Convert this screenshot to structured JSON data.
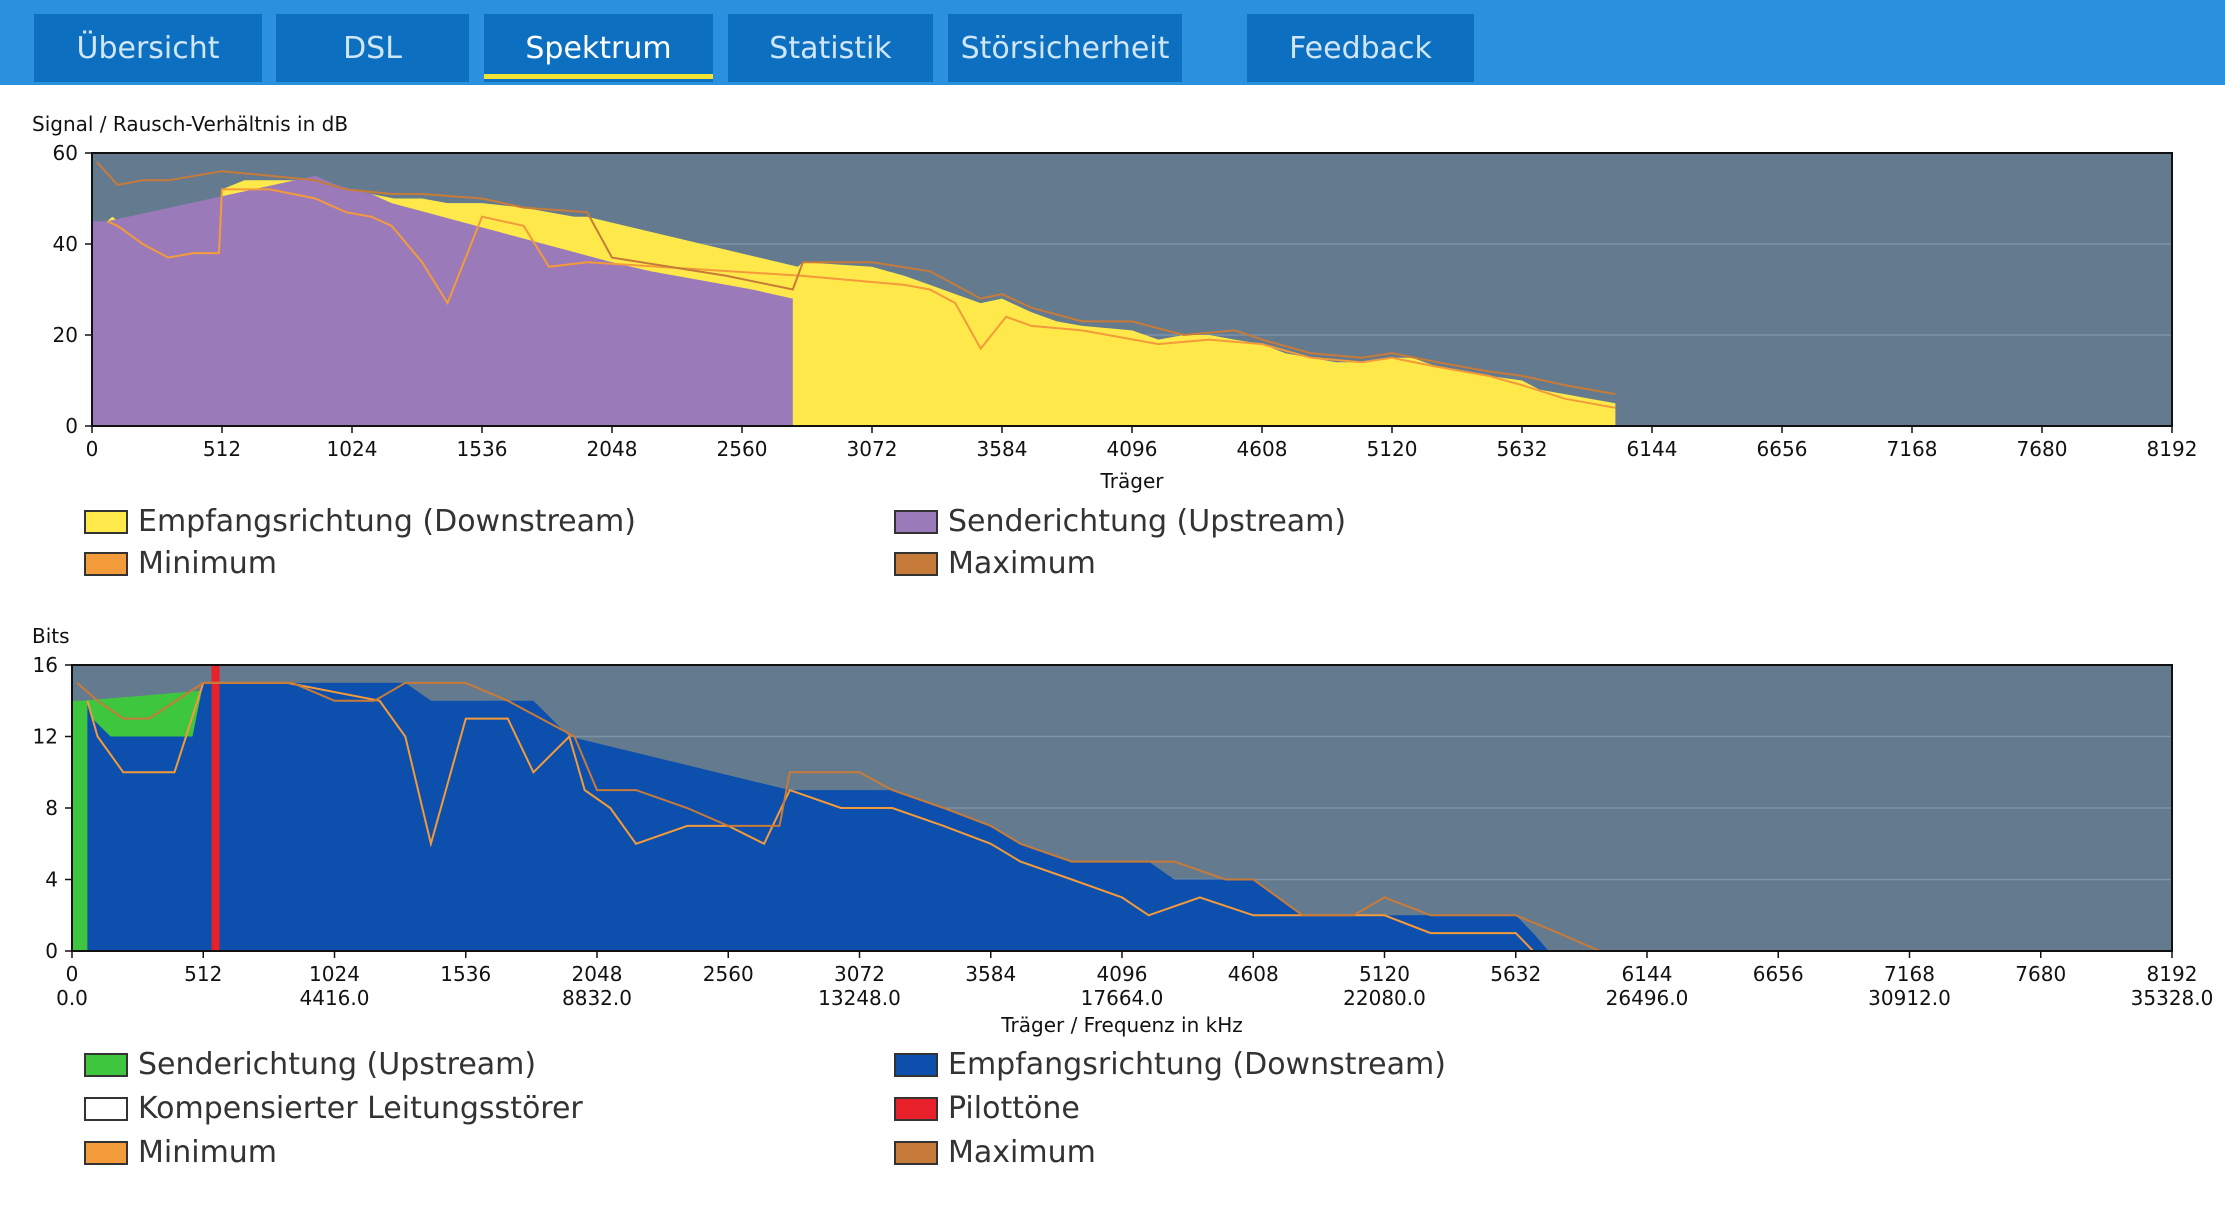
{
  "tabs": [
    {
      "label": "Übersicht",
      "active": false
    },
    {
      "label": "DSL",
      "active": false
    },
    {
      "label": "Spektrum",
      "active": true
    },
    {
      "label": "Statistik",
      "active": false
    },
    {
      "label": "Störsicherheit",
      "active": false
    },
    {
      "label": "Feedback",
      "active": false
    }
  ],
  "colors": {
    "downstream_snr": "#ffe94a",
    "upstream_snr": "#9b7ab9",
    "minimum": "#f39a3a",
    "maximum": "#c77b3a",
    "upstream_bits": "#3fc63f",
    "downstream_bits": "#0c4fad",
    "pilot": "#e8202a",
    "plot_bg": "#647a8f"
  },
  "snr_chart": {
    "title": "Signal / Rausch-Verhältnis in dB",
    "xlabel": "Träger",
    "ylim": [
      0,
      60
    ],
    "yticks": [
      "0",
      "20",
      "40",
      "60"
    ],
    "xticks": [
      "0",
      "512",
      "1024",
      "1536",
      "2048",
      "2560",
      "3072",
      "3584",
      "4096",
      "4608",
      "5120",
      "5632",
      "6144",
      "6656",
      "7168",
      "7680",
      "8192"
    ],
    "legend": [
      {
        "label": "Empfangsrichtung (Downstream)",
        "color": "#ffe94a"
      },
      {
        "label": "Senderichtung (Upstream)",
        "color": "#9b7ab9"
      },
      {
        "label": "Minimum",
        "color": "#f39a3a"
      },
      {
        "label": "Maximum",
        "color": "#c77b3a"
      }
    ]
  },
  "bits_chart": {
    "title": "Bits",
    "xlabel": "Träger / Frequenz in kHz",
    "ylim": [
      0,
      16
    ],
    "yticks": [
      "0",
      "4",
      "8",
      "12",
      "16"
    ],
    "xticks": [
      "0",
      "512",
      "1024",
      "1536",
      "2048",
      "2560",
      "3072",
      "3584",
      "4096",
      "4608",
      "5120",
      "5632",
      "6144",
      "6656",
      "7168",
      "7680",
      "8192"
    ],
    "freq_ticks": [
      "0.0",
      "4416.0",
      "8832.0",
      "13248.0",
      "17664.0",
      "22080.0",
      "26496.0",
      "30912.0",
      "35328.0"
    ],
    "legend": [
      {
        "label": "Senderichtung (Upstream)",
        "color": "#3fc63f"
      },
      {
        "label": "Empfangsrichtung (Downstream)",
        "color": "#0c4fad"
      },
      {
        "label": "Kompensierter Leitungsstörer",
        "color": "#ffffff"
      },
      {
        "label": "Pilottöne",
        "color": "#e8202a"
      },
      {
        "label": "Minimum",
        "color": "#f39a3a"
      },
      {
        "label": "Maximum",
        "color": "#c77b3a"
      }
    ]
  },
  "chart_data": [
    {
      "type": "area",
      "title": "Signal / Rausch-Verhältnis in dB",
      "xlabel": "Träger",
      "ylabel": "",
      "xlim": [
        0,
        8192
      ],
      "ylim": [
        0,
        60
      ],
      "grid": true,
      "series": [
        {
          "name": "Empfangsrichtung (Downstream)",
          "x": [
            60,
            80,
            150,
            250,
            300,
            400,
            500,
            512,
            600,
            700,
            830,
            1190,
            1300,
            1400,
            1536,
            1700,
            1800,
            1900,
            1950,
            2780,
            2800,
            3072,
            3200,
            3300,
            3400,
            3500,
            3584,
            3700,
            3800,
            3900,
            4096,
            4200,
            4300,
            4400,
            4500,
            4608,
            4700,
            4800,
            4900,
            5000,
            5120,
            5200,
            5300,
            5400,
            5500,
            5632,
            5700,
            5800,
            5900,
            6000
          ],
          "y": [
            45,
            46,
            43,
            41,
            40,
            38,
            38,
            52,
            54,
            54,
            54,
            50,
            50,
            49,
            49,
            48,
            47,
            46,
            46,
            35,
            36,
            35,
            33,
            31,
            29,
            27,
            28,
            25,
            23,
            22,
            21,
            19,
            20,
            20,
            19,
            18,
            16,
            15,
            14,
            14,
            15,
            15,
            13,
            12,
            11,
            10,
            8,
            7,
            6,
            5
          ]
        },
        {
          "name": "Senderichtung (Upstream)",
          "x": [
            0,
            60,
            880,
            960,
            1024,
            1100,
            1180,
            1980,
            2048,
            2200,
            2400,
            2500,
            2600,
            2760
          ],
          "y": [
            45,
            45,
            55,
            53,
            52,
            51,
            49,
            37,
            36,
            34,
            32,
            31,
            30,
            28
          ]
        },
        {
          "name": "Minimum",
          "x": [
            60,
            100,
            200,
            300,
            400,
            500,
            512,
            700,
            880,
            1000,
            1100,
            1180,
            1300,
            1400,
            1536,
            1700,
            1800,
            1950,
            2800,
            3000,
            3200,
            3300,
            3400,
            3500,
            3600,
            3700,
            3900,
            4200,
            4400,
            4608,
            4800,
            5000,
            5120,
            5300,
            5500,
            5632,
            5800,
            6000
          ],
          "y": [
            45,
            44,
            40,
            37,
            38,
            38,
            52,
            52,
            50,
            47,
            46,
            44,
            36,
            27,
            46,
            44,
            35,
            36,
            33,
            32,
            31,
            30,
            27,
            17,
            24,
            22,
            21,
            18,
            19,
            18,
            15,
            14,
            15,
            13,
            11,
            9,
            6,
            4
          ]
        },
        {
          "name": "Maximum",
          "x": [
            20,
            100,
            200,
            300,
            512,
            700,
            880,
            1000,
            1180,
            1300,
            1536,
            1700,
            1950,
            2048,
            2500,
            2760,
            2800,
            3072,
            3300,
            3500,
            3584,
            3700,
            3900,
            4096,
            4300,
            4500,
            4608,
            4800,
            5000,
            5120,
            5300,
            5500,
            5632,
            5800,
            6000
          ],
          "y": [
            58,
            53,
            54,
            54,
            56,
            55,
            54,
            52,
            51,
            51,
            50,
            48,
            47,
            37,
            33,
            30,
            36,
            36,
            34,
            28,
            29,
            26,
            23,
            23,
            20,
            21,
            19,
            16,
            15,
            16,
            14,
            12,
            11,
            9,
            7
          ]
        }
      ]
    },
    {
      "type": "area",
      "title": "Bits",
      "xlabel": "Träger / Frequenz in kHz",
      "ylabel": "",
      "xlim": [
        0,
        8192
      ],
      "ylim": [
        0,
        16
      ],
      "grid": true,
      "series": [
        {
          "name": "Senderichtung (Upstream)",
          "x": [
            0,
            40,
            860,
            880,
            960,
            1024,
            1100,
            1180,
            1960,
            1980,
            2048,
            2200,
            2400,
            2560,
            2700,
            2760
          ],
          "y": [
            14,
            14,
            15,
            15,
            15,
            14,
            14,
            14,
            10,
            9,
            9,
            8,
            7,
            7,
            7,
            7
          ]
        },
        {
          "name": "Empfangsrichtung (Downstream)",
          "x": [
            60,
            80,
            150,
            250,
            400,
            470,
            512,
            600,
            700,
            840,
            1200,
            1300,
            1400,
            1536,
            1700,
            1800,
            1940,
            2800,
            3000,
            3072,
            3200,
            3400,
            3584,
            3700,
            3900,
            4096,
            4200,
            4300,
            4500,
            4608,
            4800,
            5120,
            5300,
            5632,
            5700,
            5760
          ],
          "y": [
            14,
            13,
            12,
            12,
            12,
            12,
            15,
            15,
            15,
            15,
            15,
            15,
            14,
            14,
            14,
            14,
            12,
            9,
            9,
            9,
            9,
            8,
            7,
            6,
            5,
            5,
            5,
            4,
            4,
            4,
            2,
            2,
            2,
            2,
            1,
            0
          ]
        },
        {
          "name": "Pilottöne",
          "x": [
            560
          ],
          "y": [
            16
          ]
        },
        {
          "name": "Minimum",
          "x": [
            60,
            100,
            200,
            300,
            400,
            512,
            700,
            840,
            1200,
            1300,
            1400,
            1536,
            1700,
            1800,
            1940,
            2000,
            2100,
            2200,
            2400,
            2560,
            2700,
            2800,
            3000,
            3200,
            3400,
            3584,
            3700,
            3900,
            4096,
            4200,
            4400,
            4608,
            4800,
            5120,
            5300,
            5632,
            5700,
            5760
          ],
          "y": [
            14,
            12,
            10,
            10,
            10,
            15,
            15,
            15,
            14,
            12,
            6,
            13,
            13,
            10,
            12,
            9,
            8,
            6,
            7,
            7,
            6,
            9,
            8,
            8,
            7,
            6,
            5,
            4,
            3,
            2,
            3,
            2,
            2,
            2,
            1,
            1,
            0,
            0
          ]
        },
        {
          "name": "Maximum",
          "x": [
            20,
            100,
            200,
            300,
            512,
            700,
            860,
            1024,
            1180,
            1300,
            1536,
            1700,
            1960,
            2048,
            2200,
            2400,
            2560,
            2760,
            2800,
            3072,
            3200,
            3400,
            3584,
            3700,
            3900,
            4096,
            4300,
            4500,
            4608,
            4800,
            5000,
            5120,
            5300,
            5632,
            5800,
            5960
          ],
          "y": [
            15,
            14,
            13,
            13,
            15,
            15,
            15,
            14,
            14,
            15,
            15,
            14,
            12,
            9,
            9,
            8,
            7,
            7,
            10,
            10,
            9,
            8,
            7,
            6,
            5,
            5,
            5,
            4,
            4,
            2,
            2,
            3,
            2,
            2,
            1,
            0
          ]
        }
      ]
    }
  ]
}
